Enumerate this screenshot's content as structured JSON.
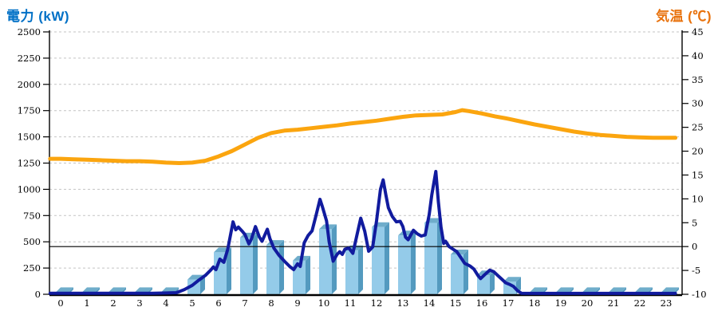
{
  "page": {
    "background": "#FFFFFF"
  },
  "chart_data": {
    "type": "combo-bar-line",
    "title_left": "電力 (kW)",
    "title_right": "気温 (℃)",
    "grid": "dashed horizontal gridlines per 250 kW, legend: none",
    "x_axis": {
      "labels": [
        "0",
        "1",
        "2",
        "3",
        "4",
        "5",
        "6",
        "7",
        "8",
        "9",
        "10",
        "11",
        "12",
        "13",
        "14",
        "15",
        "16",
        "17",
        "18",
        "19",
        "20",
        "21",
        "22",
        "23"
      ]
    },
    "left_axis": {
      "title": "電力 (kW)",
      "unit": "kW",
      "min": 0,
      "max": 2500,
      "step": 250,
      "ticks": [
        "0",
        "250",
        "500",
        "750",
        "1000",
        "1250",
        "1500",
        "1750",
        "2000",
        "2250",
        "2500"
      ]
    },
    "right_axis": {
      "title": "気温 (℃)",
      "unit": "℃",
      "min": -10,
      "max": 45,
      "step": 5,
      "ticks": [
        "-10",
        "-5",
        "0",
        "5",
        "10",
        "15",
        "20",
        "25",
        "30",
        "35",
        "40",
        "45"
      ]
    },
    "zero_temp_reference_line_c": 0,
    "series": [
      {
        "name": "power-bars",
        "type": "bar",
        "axis": "left",
        "unit": "kW",
        "categories": [
          0,
          1,
          2,
          3,
          4,
          5,
          6,
          7,
          8,
          9,
          10,
          11,
          12,
          13,
          14,
          15,
          16,
          17,
          18,
          19,
          20,
          21,
          22,
          23
        ],
        "values": [
          20,
          20,
          20,
          20,
          20,
          140,
          400,
          540,
          470,
          320,
          620,
          420,
          640,
          560,
          680,
          380,
          180,
          120,
          20,
          20,
          20,
          20,
          20,
          20
        ]
      },
      {
        "name": "power-line",
        "type": "line",
        "axis": "left",
        "unit": "kW",
        "points": [
          [
            -0.4,
            10
          ],
          [
            0,
            10
          ],
          [
            0.5,
            10
          ],
          [
            1,
            10
          ],
          [
            1.5,
            10
          ],
          [
            2,
            10
          ],
          [
            2.5,
            10
          ],
          [
            3,
            10
          ],
          [
            3.5,
            10
          ],
          [
            4,
            12
          ],
          [
            4.4,
            15
          ],
          [
            4.7,
            45
          ],
          [
            5,
            85
          ],
          [
            5.25,
            135
          ],
          [
            5.5,
            180
          ],
          [
            5.7,
            230
          ],
          [
            5.8,
            260
          ],
          [
            5.9,
            235
          ],
          [
            6.05,
            335
          ],
          [
            6.2,
            305
          ],
          [
            6.35,
            430
          ],
          [
            6.55,
            690
          ],
          [
            6.65,
            615
          ],
          [
            6.75,
            640
          ],
          [
            6.9,
            600
          ],
          [
            7,
            570
          ],
          [
            7.15,
            480
          ],
          [
            7.25,
            530
          ],
          [
            7.4,
            645
          ],
          [
            7.55,
            545
          ],
          [
            7.65,
            505
          ],
          [
            7.85,
            620
          ],
          [
            7.95,
            530
          ],
          [
            8.1,
            440
          ],
          [
            8.3,
            370
          ],
          [
            8.5,
            315
          ],
          [
            8.7,
            265
          ],
          [
            8.85,
            235
          ],
          [
            9,
            290
          ],
          [
            9.1,
            265
          ],
          [
            9.25,
            490
          ],
          [
            9.4,
            560
          ],
          [
            9.55,
            605
          ],
          [
            9.7,
            750
          ],
          [
            9.85,
            905
          ],
          [
            9.95,
            830
          ],
          [
            10.1,
            700
          ],
          [
            10.2,
            500
          ],
          [
            10.35,
            315
          ],
          [
            10.5,
            380
          ],
          [
            10.6,
            405
          ],
          [
            10.7,
            380
          ],
          [
            10.8,
            430
          ],
          [
            10.95,
            440
          ],
          [
            11.1,
            390
          ],
          [
            11.25,
            560
          ],
          [
            11.4,
            725
          ],
          [
            11.55,
            600
          ],
          [
            11.7,
            410
          ],
          [
            11.85,
            450
          ],
          [
            12,
            700
          ],
          [
            12.15,
            1000
          ],
          [
            12.25,
            1090
          ],
          [
            12.35,
            950
          ],
          [
            12.45,
            825
          ],
          [
            12.6,
            740
          ],
          [
            12.75,
            690
          ],
          [
            12.9,
            695
          ],
          [
            13,
            645
          ],
          [
            13.1,
            545
          ],
          [
            13.2,
            520
          ],
          [
            13.4,
            610
          ],
          [
            13.55,
            575
          ],
          [
            13.7,
            555
          ],
          [
            13.85,
            565
          ],
          [
            14,
            760
          ],
          [
            14.1,
            950
          ],
          [
            14.25,
            1170
          ],
          [
            14.35,
            880
          ],
          [
            14.45,
            640
          ],
          [
            14.55,
            485
          ],
          [
            14.62,
            505
          ],
          [
            14.75,
            455
          ],
          [
            14.9,
            430
          ],
          [
            15.05,
            405
          ],
          [
            15.2,
            350
          ],
          [
            15.35,
            295
          ],
          [
            15.55,
            270
          ],
          [
            15.7,
            240
          ],
          [
            15.85,
            180
          ],
          [
            15.95,
            150
          ],
          [
            16.1,
            185
          ],
          [
            16.3,
            230
          ],
          [
            16.45,
            215
          ],
          [
            16.6,
            180
          ],
          [
            16.75,
            145
          ],
          [
            16.9,
            110
          ],
          [
            17.05,
            95
          ],
          [
            17.2,
            75
          ],
          [
            17.35,
            35
          ],
          [
            17.5,
            10
          ],
          [
            18,
            8
          ],
          [
            19,
            8
          ],
          [
            20,
            8
          ],
          [
            21,
            8
          ],
          [
            22,
            8
          ],
          [
            23,
            8
          ],
          [
            23.35,
            8
          ]
        ]
      },
      {
        "name": "temperature-line",
        "type": "line",
        "axis": "right",
        "unit": "℃",
        "points": [
          [
            -0.4,
            18.4
          ],
          [
            0,
            18.4
          ],
          [
            0.5,
            18.3
          ],
          [
            1,
            18.2
          ],
          [
            1.5,
            18.1
          ],
          [
            2,
            18
          ],
          [
            2.5,
            17.9
          ],
          [
            3,
            17.9
          ],
          [
            3.5,
            17.8
          ],
          [
            4,
            17.6
          ],
          [
            4.5,
            17.5
          ],
          [
            5,
            17.6
          ],
          [
            5.5,
            18
          ],
          [
            6,
            18.9
          ],
          [
            6.5,
            20
          ],
          [
            7,
            21.4
          ],
          [
            7.5,
            22.8
          ],
          [
            8,
            23.8
          ],
          [
            8.5,
            24.3
          ],
          [
            9,
            24.5
          ],
          [
            9.5,
            24.8
          ],
          [
            10,
            25.1
          ],
          [
            10.5,
            25.4
          ],
          [
            11,
            25.8
          ],
          [
            11.5,
            26.1
          ],
          [
            12,
            26.4
          ],
          [
            12.5,
            26.8
          ],
          [
            13,
            27.2
          ],
          [
            13.5,
            27.5
          ],
          [
            14,
            27.6
          ],
          [
            14.5,
            27.7
          ],
          [
            15,
            28.2
          ],
          [
            15.25,
            28.6
          ],
          [
            15.5,
            28.4
          ],
          [
            16,
            27.9
          ],
          [
            16.5,
            27.3
          ],
          [
            17,
            26.8
          ],
          [
            17.5,
            26.2
          ],
          [
            18,
            25.6
          ],
          [
            18.5,
            25.1
          ],
          [
            19,
            24.6
          ],
          [
            19.5,
            24.1
          ],
          [
            20,
            23.7
          ],
          [
            20.5,
            23.4
          ],
          [
            21,
            23.2
          ],
          [
            21.5,
            23
          ],
          [
            22,
            22.9
          ],
          [
            22.5,
            22.8
          ],
          [
            23,
            22.8
          ],
          [
            23.35,
            22.8
          ]
        ]
      }
    ],
    "colors": {
      "title_left": "#0070C6",
      "title_right": "#E8720D",
      "bar_front": "#94CBE9",
      "bar_top": "#6FADCB",
      "bar_side": "#549ABF",
      "power_line": "#111B9E",
      "temperature_line": "#FBA50F",
      "gridline": "#C3C3C3",
      "axis": "#000000"
    }
  }
}
